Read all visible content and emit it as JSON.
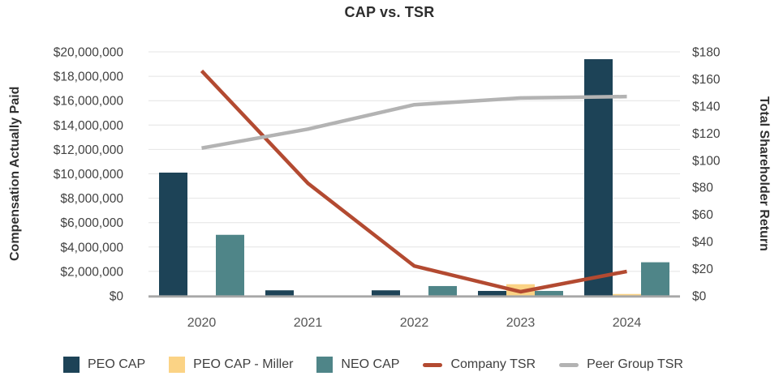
{
  "chart_data": {
    "type": "combo-bar-line",
    "title": "CAP vs. TSR",
    "categories": [
      "2020",
      "2021",
      "2022",
      "2023",
      "2024"
    ],
    "left_axis": {
      "title": "Compensation Actually Paid",
      "min": 0,
      "max": 20000000,
      "step": 2000000,
      "tick_labels": [
        "$20,000,000",
        "$18,000,000",
        "$16,000,000",
        "$14,000,000",
        "$12,000,000",
        "$10,000,000",
        "$8,000,000",
        "$6,000,000",
        "$4,000,000",
        "$2,000,000",
        "$0"
      ]
    },
    "right_axis": {
      "title": "Total Shareholder Return",
      "min": 0,
      "max": 180,
      "step": 20,
      "tick_labels": [
        "$180",
        "$160",
        "$140",
        "$120",
        "$100",
        "$80",
        "$60",
        "$40",
        "$20",
        "$0"
      ]
    },
    "bar_series": [
      {
        "name": "PEO CAP",
        "color": "#1d4357",
        "values": [
          10100000,
          450000,
          450000,
          400000,
          19400000
        ]
      },
      {
        "name": "PEO CAP - Miller",
        "color": "#fbd385",
        "values": [
          0,
          0,
          0,
          950000,
          150000
        ]
      },
      {
        "name": "NEO CAP",
        "color": "#4f8588",
        "values": [
          5000000,
          0,
          800000,
          400000,
          2750000
        ]
      }
    ],
    "line_series": [
      {
        "name": "Company TSR",
        "color": "#b34a31",
        "values": [
          166,
          83,
          22,
          3,
          18
        ]
      },
      {
        "name": "Peer Group TSR",
        "color": "#b3b3b3",
        "values": [
          109,
          123,
          141,
          146,
          147
        ]
      }
    ],
    "grid": true,
    "legend_position": "bottom"
  }
}
